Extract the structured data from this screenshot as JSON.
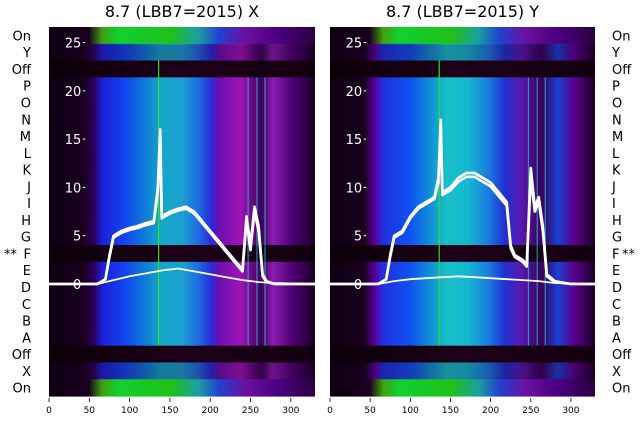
{
  "chart_data": [
    {
      "type": "heatmap",
      "title": "8.7 (LBB7=2015) X",
      "xlim": [
        0,
        330
      ],
      "x_ticks": [
        "0",
        "50",
        "100",
        "150",
        "200",
        "250",
        "300"
      ],
      "y_ticks": [
        "0",
        "5",
        "10",
        "15",
        "20",
        "25"
      ],
      "row_labels": [
        "On",
        "Y",
        "Off",
        "P",
        "O",
        "N",
        "M",
        "L",
        "K",
        "J",
        "I",
        "H",
        "G",
        "F",
        "E",
        "D",
        "C",
        "B",
        "A",
        "Off",
        "X",
        "On"
      ],
      "marked_row": "F",
      "marker": "**",
      "series": [
        {
          "x": [
            0,
            60,
            70,
            75,
            80,
            90,
            100,
            110,
            120,
            130,
            135,
            138,
            140,
            150,
            160,
            170,
            180,
            190,
            200,
            210,
            220,
            230,
            240,
            245,
            250,
            255,
            260,
            265,
            270,
            280,
            300,
            330
          ],
          "y": [
            0,
            0,
            0.5,
            3,
            5,
            5.5,
            5.8,
            6,
            6.3,
            6.5,
            10,
            16,
            7,
            7.5,
            7.8,
            8,
            7.5,
            6.5,
            5.5,
            4.5,
            3.5,
            2.5,
            1.5,
            7,
            4,
            8,
            6,
            1,
            0.3,
            0,
            0,
            0
          ]
        },
        {
          "x": [
            0,
            60,
            70,
            75,
            80,
            90,
            100,
            110,
            120,
            130,
            135,
            138,
            140,
            150,
            160,
            170,
            180,
            190,
            200,
            210,
            220,
            230,
            240,
            245,
            250,
            255,
            260,
            265,
            270,
            280,
            300,
            330
          ],
          "y": [
            0,
            0,
            0.5,
            2.8,
            4.8,
            5.3,
            5.6,
            5.8,
            6.1,
            6.3,
            9.5,
            15,
            6.8,
            7.3,
            7.6,
            7.8,
            7.3,
            6.3,
            5.3,
            4.3,
            3.3,
            2.3,
            1.3,
            6.5,
            3.5,
            7.5,
            5.5,
            0.8,
            0.2,
            0,
            0,
            0
          ]
        },
        {
          "x": [
            0,
            60,
            80,
            100,
            120,
            140,
            160,
            180,
            200,
            220,
            240,
            260,
            280,
            330
          ],
          "y": [
            0,
            0,
            0.4,
            0.8,
            1.1,
            1.4,
            1.6,
            1.3,
            1.0,
            0.7,
            0.4,
            0.2,
            0.1,
            0
          ]
        }
      ]
    },
    {
      "type": "heatmap",
      "title": "8.7 (LBB7=2015) Y",
      "xlim": [
        0,
        330
      ],
      "x_ticks": [
        "0",
        "50",
        "100",
        "150",
        "200",
        "250",
        "300"
      ],
      "y_ticks": [
        "0",
        "5",
        "10",
        "15",
        "20",
        "25"
      ],
      "row_labels": [
        "On",
        "Y",
        "Off",
        "P",
        "O",
        "N",
        "M",
        "L",
        "K",
        "J",
        "I",
        "H",
        "G",
        "F",
        "E",
        "D",
        "C",
        "B",
        "A",
        "Off",
        "X",
        "On"
      ],
      "marked_row": "F",
      "marker": "**",
      "series": [
        {
          "x": [
            0,
            60,
            70,
            75,
            80,
            90,
            100,
            110,
            120,
            130,
            135,
            138,
            140,
            150,
            160,
            170,
            180,
            190,
            200,
            210,
            220,
            225,
            230,
            240,
            245,
            250,
            255,
            260,
            265,
            270,
            280,
            300,
            330
          ],
          "y": [
            0,
            0,
            0.5,
            3,
            5,
            5.5,
            7,
            8,
            8.5,
            9,
            11,
            17,
            9.5,
            10,
            11,
            11.5,
            11.5,
            11,
            10.5,
            9.5,
            8.5,
            4,
            3,
            2.5,
            2,
            12,
            8,
            9,
            6,
            1,
            0.3,
            0,
            0
          ]
        },
        {
          "x": [
            0,
            60,
            70,
            75,
            80,
            90,
            100,
            110,
            120,
            130,
            135,
            138,
            140,
            150,
            160,
            170,
            180,
            190,
            200,
            210,
            220,
            225,
            230,
            240,
            245,
            250,
            255,
            260,
            265,
            270,
            280,
            300,
            330
          ],
          "y": [
            0,
            0,
            0.5,
            2.8,
            4.8,
            5.3,
            6.8,
            7.8,
            8.3,
            8.8,
            10.5,
            16,
            9.2,
            9.7,
            10.6,
            11.1,
            11.1,
            10.6,
            10.1,
            9.1,
            8.1,
            3.7,
            2.8,
            2.3,
            1.8,
            11,
            7.5,
            8.5,
            5.5,
            0.8,
            0.2,
            0,
            0
          ]
        },
        {
          "x": [
            0,
            60,
            80,
            100,
            120,
            140,
            160,
            180,
            200,
            220,
            240,
            260,
            280,
            330
          ],
          "y": [
            0,
            0,
            0.3,
            0.5,
            0.6,
            0.7,
            0.8,
            0.7,
            0.6,
            0.5,
            0.4,
            0.3,
            0.1,
            0
          ]
        }
      ]
    }
  ]
}
